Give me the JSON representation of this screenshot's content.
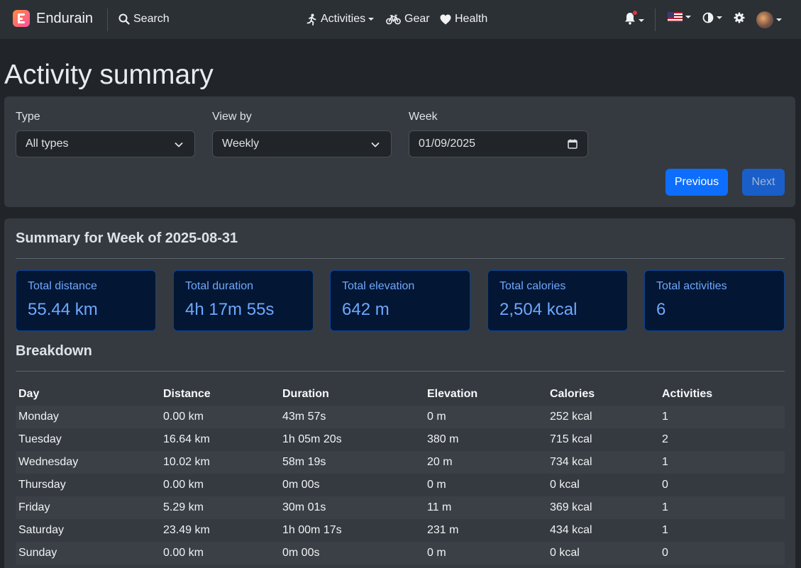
{
  "navbar": {
    "brand": "Endurain",
    "search": "Search",
    "activities": "Activities",
    "gear": "Gear",
    "health": "Health"
  },
  "page": {
    "title": "Activity summary"
  },
  "filters": {
    "type_label": "Type",
    "type_value": "All types",
    "view_label": "View by",
    "view_value": "Weekly",
    "week_label": "Week",
    "week_value": "01/09/2025",
    "previous": "Previous",
    "next": "Next"
  },
  "summary": {
    "heading": "Summary for Week of 2025-08-31",
    "stats": [
      {
        "label": "Total distance",
        "value": "55.44 km"
      },
      {
        "label": "Total duration",
        "value": "4h 17m 55s"
      },
      {
        "label": "Total elevation",
        "value": "642 m"
      },
      {
        "label": "Total calories",
        "value": "2,504 kcal"
      },
      {
        "label": "Total activities",
        "value": "6"
      }
    ],
    "breakdown_heading": "Breakdown",
    "columns": [
      "Day",
      "Distance",
      "Duration",
      "Elevation",
      "Calories",
      "Activities"
    ],
    "rows": [
      [
        "Monday",
        "0.00 km",
        "43m 57s",
        "0 m",
        "252 kcal",
        "1"
      ],
      [
        "Tuesday",
        "16.64 km",
        "1h 05m 20s",
        "380 m",
        "715 kcal",
        "2"
      ],
      [
        "Wednesday",
        "10.02 km",
        "58m 19s",
        "20 m",
        "734 kcal",
        "1"
      ],
      [
        "Thursday",
        "0.00 km",
        "0m 00s",
        "0 m",
        "0 kcal",
        "0"
      ],
      [
        "Friday",
        "5.29 km",
        "30m 01s",
        "11 m",
        "369 kcal",
        "1"
      ],
      [
        "Saturday",
        "23.49 km",
        "1h 00m 17s",
        "231 m",
        "434 kcal",
        "1"
      ],
      [
        "Sunday",
        "0.00 km",
        "0m 00s",
        "0 m",
        "0 kcal",
        "0"
      ]
    ]
  },
  "colors": {
    "accent": "#0d6efd",
    "stat_text": "#6ea8fe",
    "stat_bg": "#031633",
    "notification": "#dc3545"
  }
}
